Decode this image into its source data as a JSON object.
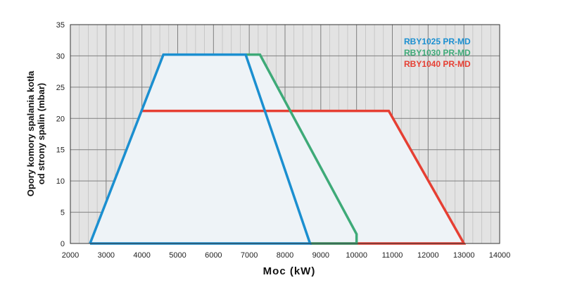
{
  "chart_data": {
    "type": "area",
    "xlabel": "Moc (kW)",
    "ylabel_lines": [
      "Opory komory spalania kotła",
      "od strony spalin (mbar)"
    ],
    "xlim": [
      2000,
      14000
    ],
    "ylim": [
      0,
      35
    ],
    "x_ticks": [
      2000,
      3000,
      4000,
      5000,
      6000,
      7000,
      8000,
      9000,
      10000,
      11000,
      12000,
      13000,
      14000
    ],
    "y_ticks": [
      0,
      5,
      10,
      15,
      20,
      25,
      30,
      35
    ],
    "x_minor_step": 250,
    "grid": true,
    "legend_position": "top-right",
    "fill_color": "#eef3f7",
    "series": [
      {
        "name": "RBY1025 PR-MD",
        "color": "#1b8fd0",
        "points": [
          [
            2550,
            0
          ],
          [
            4600,
            30.2
          ],
          [
            6900,
            30.2
          ],
          [
            8700,
            0
          ],
          [
            2550,
            0
          ]
        ]
      },
      {
        "name": "RBY1030 PR-MD",
        "color": "#3eaa78",
        "points": [
          [
            6900,
            30.2
          ],
          [
            7300,
            30.2
          ],
          [
            10000,
            1.5
          ],
          [
            10000,
            0
          ],
          [
            8700,
            0
          ]
        ]
      },
      {
        "name": "RBY1040 PR-MD",
        "color": "#e63f33",
        "points": [
          [
            4000,
            21.2
          ],
          [
            10900,
            21.2
          ],
          [
            13000,
            0
          ],
          [
            8700,
            0
          ]
        ]
      }
    ]
  }
}
